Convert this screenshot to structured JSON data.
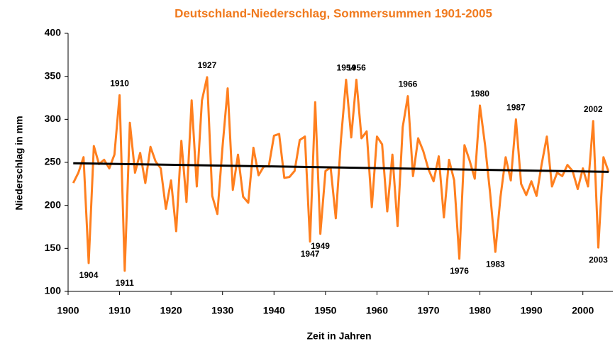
{
  "chart_data": {
    "type": "line",
    "title": "Deutschland-Niederschlag, Sommersummen 1901-2005",
    "x_label": "Zeit in Jahren",
    "y_label": "Niederschlag in mm",
    "x": [
      1901,
      1902,
      1903,
      1904,
      1905,
      1906,
      1907,
      1908,
      1909,
      1910,
      1911,
      1912,
      1913,
      1914,
      1915,
      1916,
      1917,
      1918,
      1919,
      1920,
      1921,
      1922,
      1923,
      1924,
      1925,
      1926,
      1927,
      1928,
      1929,
      1930,
      1931,
      1932,
      1933,
      1934,
      1935,
      1936,
      1937,
      1938,
      1939,
      1940,
      1941,
      1942,
      1943,
      1944,
      1945,
      1946,
      1947,
      1948,
      1949,
      1950,
      1951,
      1952,
      1953,
      1954,
      1955,
      1956,
      1957,
      1958,
      1959,
      1960,
      1961,
      1962,
      1963,
      1964,
      1965,
      1966,
      1967,
      1968,
      1969,
      1970,
      1971,
      1972,
      1973,
      1974,
      1975,
      1976,
      1977,
      1978,
      1979,
      1980,
      1981,
      1982,
      1983,
      1984,
      1985,
      1986,
      1987,
      1988,
      1989,
      1990,
      1991,
      1992,
      1993,
      1994,
      1995,
      1996,
      1997,
      1998,
      1999,
      2000,
      2001,
      2002,
      2003,
      2004,
      2005
    ],
    "series": [
      {
        "color": "#ff7f1e",
        "values": [
          226,
          238,
          256,
          133,
          269,
          248,
          253,
          243,
          259,
          328,
          124,
          296,
          238,
          261,
          226,
          268,
          251,
          243,
          196,
          229,
          170,
          275,
          204,
          322,
          222,
          322,
          349,
          211,
          190,
          268,
          336,
          218,
          259,
          210,
          203,
          267,
          235,
          245,
          246,
          281,
          283,
          232,
          233,
          240,
          276,
          280,
          158,
          320,
          167,
          240,
          244,
          185,
          276,
          346,
          279,
          346,
          278,
          286,
          198,
          280,
          271,
          193,
          259,
          176,
          291,
          327,
          234,
          278,
          263,
          242,
          228,
          257,
          186,
          253,
          229,
          138,
          270,
          252,
          231,
          316,
          270,
          213,
          146,
          210,
          256,
          229,
          300,
          225,
          212,
          228,
          211,
          248,
          280,
          222,
          238,
          234,
          247,
          240,
          219,
          243,
          222,
          298,
          151,
          256,
          239
        ]
      }
    ],
    "trend": {
      "color": "#000000",
      "x": [
        1901,
        2005
      ],
      "values": [
        249,
        239
      ]
    },
    "annotations": [
      "1904",
      "1910",
      "1911",
      "1927",
      "1947",
      "1949",
      "1954",
      "1956",
      "1966",
      "1976",
      "1980",
      "1983",
      "1987",
      "2002",
      "2003"
    ],
    "title_color": "#f07a1e",
    "xlim": [
      1900,
      2005
    ],
    "xticks": [
      1900,
      1910,
      1920,
      1930,
      1940,
      1950,
      1960,
      1970,
      1980,
      1990,
      2000
    ],
    "ylim": [
      100,
      400
    ],
    "yticks": [
      100,
      150,
      200,
      250,
      300,
      350,
      400
    ]
  }
}
